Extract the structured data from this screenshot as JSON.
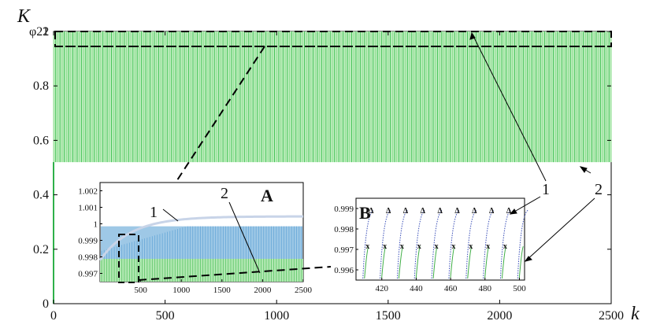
{
  "chart_data": {
    "type": "line",
    "ylabel": "K",
    "ylabel_subscript": "φ22",
    "xlabel": "k",
    "xlim": [
      0,
      2500
    ],
    "ylim": [
      0,
      1
    ],
    "x_ticks": [
      "0",
      "500",
      "1000",
      "1500",
      "2000",
      "2500"
    ],
    "y_ticks": [
      "0",
      "0.2",
      "0.4",
      "0.6",
      "0.8",
      "1"
    ],
    "band": {
      "k_start": 0,
      "k_end": 2500,
      "upper": 1.0,
      "lower": 0.52,
      "period_k": 5
    },
    "markers": [
      "1",
      "2"
    ],
    "insets": [
      {
        "label": "A",
        "xlim": [
          0,
          2500
        ],
        "ylim": [
          0.9965,
          1.0025
        ],
        "x_ticks": [
          "500",
          "1000",
          "1500",
          "2000",
          "2500"
        ],
        "y_ticks": [
          "0.997",
          "0.998",
          "0.999",
          "1",
          "1.001",
          "1.002"
        ],
        "series_1": {
          "name": "1",
          "level": 0.99985
        },
        "series_2": {
          "name": "2",
          "level": 0.99788
        },
        "series_1_start": 0.9978,
        "series_2_start": 0.9971
      },
      {
        "label": "B",
        "xlim": [
          405,
          503
        ],
        "ylim": [
          0.9955,
          0.9995
        ],
        "x_ticks": [
          "420",
          "440",
          "460",
          "480",
          "500"
        ],
        "y_ticks": [
          "0.996",
          "0.997",
          "0.998",
          "0.999"
        ],
        "marker_delta": "Δ",
        "marker_x": "x",
        "delta_level": 0.99893,
        "x_level": 0.99715,
        "cycle_starts": [
          409,
          419,
          429,
          439,
          449,
          459,
          469,
          479,
          489,
          499
        ]
      }
    ]
  }
}
